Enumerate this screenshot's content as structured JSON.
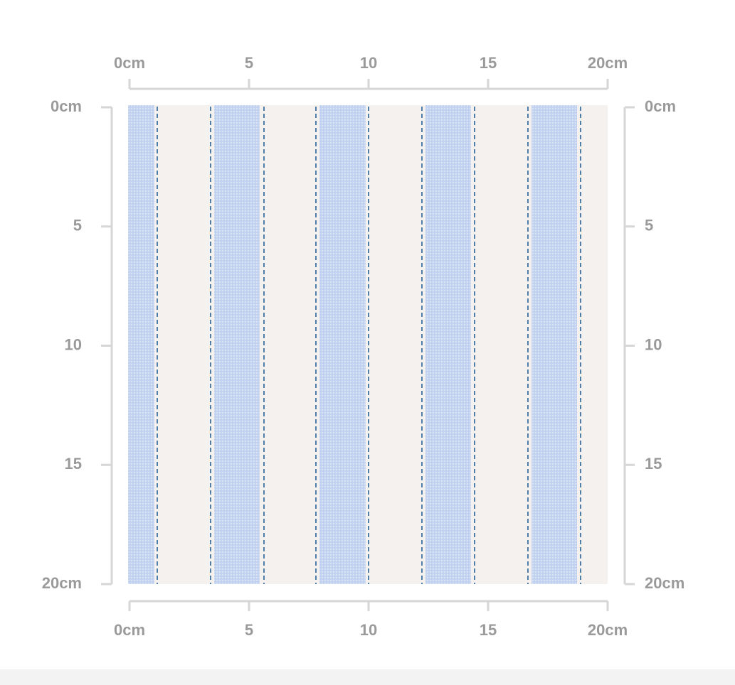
{
  "ruler": {
    "range": [
      0,
      20
    ],
    "ticks": [
      {
        "value": 0,
        "label": "0cm"
      },
      {
        "value": 5,
        "label": "5"
      },
      {
        "value": 10,
        "label": "10"
      },
      {
        "value": 15,
        "label": "15"
      },
      {
        "value": 20,
        "label": "20cm"
      }
    ]
  }
}
